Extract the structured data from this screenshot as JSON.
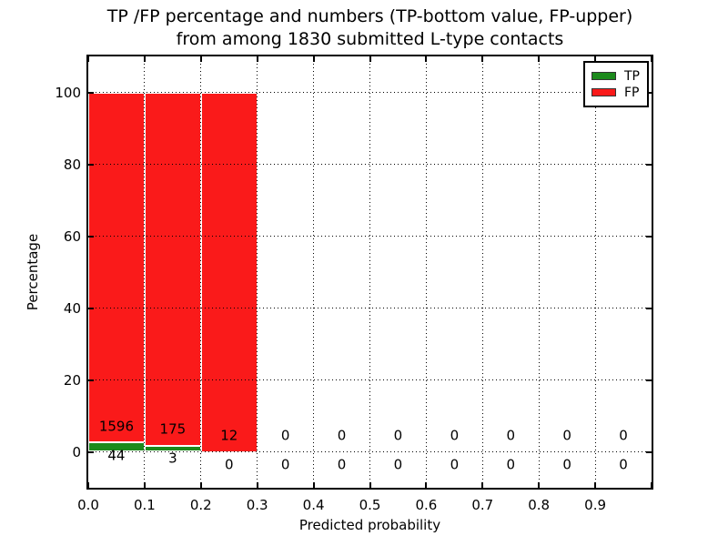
{
  "figure": {
    "title_line1": "TP /FP percentage and numbers (TP-bottom value, FP-upper)",
    "title_line2": "from among 1830 submitted L-type contacts",
    "xlabel": "Predicted probability",
    "ylabel": "Percentage"
  },
  "chart_data": {
    "type": "bar",
    "stacked": true,
    "normalization": "percent of contacts within each bin (TP+FP = 100%)",
    "title": "TP /FP percentage and numbers (TP-bottom value, FP-upper) from among 1830 submitted L-type contacts",
    "xlabel": "Predicted probability",
    "ylabel": "Percentage",
    "total_contacts": 1830,
    "bin_width": 0.1,
    "bin_starts": [
      0.0,
      0.1,
      0.2,
      0.3,
      0.4,
      0.5,
      0.6,
      0.7,
      0.8,
      0.9
    ],
    "series": [
      {
        "name": "TP",
        "color": "#1c8a1c",
        "counts": [
          44,
          3,
          0,
          0,
          0,
          0,
          0,
          0,
          0,
          0
        ]
      },
      {
        "name": "FP",
        "color": "#fa1a1a",
        "counts": [
          1596,
          175,
          12,
          0,
          0,
          0,
          0,
          0,
          0,
          0
        ]
      }
    ],
    "annotations": {
      "fp_counts": [
        "1596",
        "175",
        "12",
        "0",
        "0",
        "0",
        "0",
        "0",
        "0",
        "0"
      ],
      "tp_counts": [
        "44",
        "3",
        "0",
        "0",
        "0",
        "0",
        "0",
        "0",
        "0",
        "0"
      ]
    },
    "x_tick_labels": [
      "0.0",
      "0.1",
      "0.2",
      "0.3",
      "0.4",
      "0.5",
      "0.6",
      "0.7",
      "0.8",
      "0.9"
    ],
    "y_tick_labels": [
      "0",
      "20",
      "40",
      "60",
      "80",
      "100"
    ],
    "y_tick_values": [
      0,
      20,
      40,
      60,
      80,
      100
    ],
    "xlim": [
      0.0,
      1.0
    ],
    "ylim": [
      -10,
      110
    ],
    "grid": true,
    "grid_style": "dotted",
    "legend_position": "upper right",
    "legend_entries": [
      "TP",
      "FP"
    ]
  }
}
